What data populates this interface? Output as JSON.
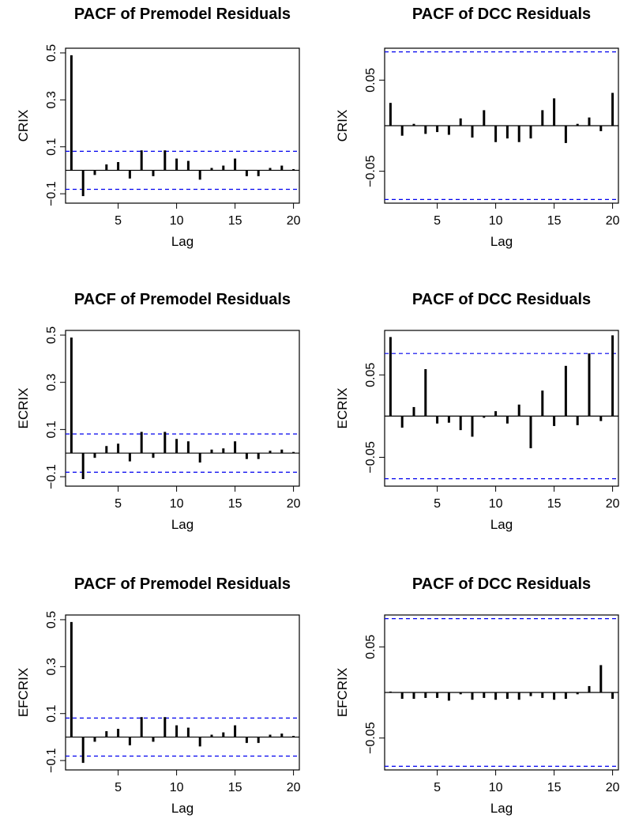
{
  "chart_data": [
    {
      "type": "bar",
      "title": "PACF of Premodel Residuals",
      "xlabel": "Lag",
      "ylabel": "CRIX",
      "x": [
        1,
        2,
        3,
        4,
        5,
        6,
        7,
        8,
        9,
        10,
        11,
        12,
        13,
        14,
        15,
        16,
        17,
        18,
        19,
        20
      ],
      "values": [
        0.49,
        -0.11,
        -0.02,
        0.025,
        0.035,
        -0.035,
        0.085,
        -0.025,
        0.085,
        0.05,
        0.04,
        -0.04,
        0.01,
        0.02,
        0.05,
        -0.025,
        -0.025,
        0.01,
        0.02,
        0.005
      ],
      "conf_bound": 0.081,
      "xlim": [
        0.5,
        20.5
      ],
      "ylim": [
        -0.14,
        0.52
      ],
      "xticks": [
        5,
        10,
        15,
        20
      ],
      "yticks": [
        -0.1,
        0.1,
        0.3,
        0.5
      ],
      "ytick_labels": [
        "−0.1",
        "0.1",
        "0.3",
        "0.5"
      ]
    },
    {
      "type": "bar",
      "title": "PACF of DCC Residuals",
      "xlabel": "Lag",
      "ylabel": "CRIX",
      "x": [
        1,
        2,
        3,
        4,
        5,
        6,
        7,
        8,
        9,
        10,
        11,
        12,
        13,
        14,
        15,
        16,
        17,
        18,
        19,
        20
      ],
      "values": [
        0.025,
        -0.011,
        0.002,
        -0.009,
        -0.007,
        -0.01,
        0.008,
        -0.013,
        0.017,
        -0.018,
        -0.014,
        -0.018,
        -0.014,
        0.017,
        0.03,
        -0.019,
        0.002,
        0.009,
        -0.006,
        0.036
      ],
      "conf_bound": 0.081,
      "xlim": [
        0.5,
        20.5
      ],
      "ylim": [
        -0.085,
        0.085
      ],
      "xticks": [
        5,
        10,
        15,
        20
      ],
      "yticks": [
        -0.05,
        0.05
      ],
      "ytick_labels": [
        "−0.05",
        "0.05"
      ]
    },
    {
      "type": "bar",
      "title": "PACF of Premodel Residuals",
      "xlabel": "Lag",
      "ylabel": "ECRIX",
      "x": [
        1,
        2,
        3,
        4,
        5,
        6,
        7,
        8,
        9,
        10,
        11,
        12,
        13,
        14,
        15,
        16,
        17,
        18,
        19,
        20
      ],
      "values": [
        0.49,
        -0.11,
        -0.02,
        0.03,
        0.04,
        -0.035,
        0.09,
        -0.02,
        0.09,
        0.06,
        0.05,
        -0.04,
        0.015,
        0.02,
        0.05,
        -0.025,
        -0.025,
        0.01,
        0.015,
        0.005
      ],
      "conf_bound": 0.081,
      "xlim": [
        0.5,
        20.5
      ],
      "ylim": [
        -0.14,
        0.52
      ],
      "xticks": [
        5,
        10,
        15,
        20
      ],
      "yticks": [
        -0.1,
        0.1,
        0.3,
        0.5
      ],
      "ytick_labels": [
        "−0.1",
        "0.1",
        "0.3",
        "0.5"
      ]
    },
    {
      "type": "bar",
      "title": "PACF of DCC Residuals",
      "xlabel": "Lag",
      "ylabel": "ECRIX",
      "x": [
        1,
        2,
        3,
        4,
        5,
        6,
        7,
        8,
        9,
        10,
        11,
        12,
        13,
        14,
        15,
        16,
        17,
        18,
        19,
        20
      ],
      "values": [
        0.096,
        -0.014,
        0.011,
        0.057,
        -0.009,
        -0.008,
        -0.017,
        -0.025,
        -0.002,
        0.006,
        -0.009,
        0.014,
        -0.039,
        0.031,
        -0.012,
        0.061,
        -0.011,
        0.076,
        -0.006,
        0.098
      ],
      "conf_bound": 0.076,
      "xlim": [
        0.5,
        20.5
      ],
      "ylim": [
        -0.085,
        0.104
      ],
      "xticks": [
        5,
        10,
        15,
        20
      ],
      "yticks": [
        -0.05,
        0.05
      ],
      "ytick_labels": [
        "−0.05",
        "0.05"
      ]
    },
    {
      "type": "bar",
      "title": "PACF of Premodel Residuals",
      "xlabel": "Lag",
      "ylabel": "EFCRIX",
      "x": [
        1,
        2,
        3,
        4,
        5,
        6,
        7,
        8,
        9,
        10,
        11,
        12,
        13,
        14,
        15,
        16,
        17,
        18,
        19,
        20
      ],
      "values": [
        0.49,
        -0.11,
        -0.02,
        0.025,
        0.035,
        -0.035,
        0.085,
        -0.02,
        0.085,
        0.05,
        0.04,
        -0.04,
        0.01,
        0.02,
        0.05,
        -0.025,
        -0.025,
        0.01,
        0.015,
        0.005
      ],
      "conf_bound": 0.081,
      "xlim": [
        0.5,
        20.5
      ],
      "ylim": [
        -0.14,
        0.52
      ],
      "xticks": [
        5,
        10,
        15,
        20
      ],
      "yticks": [
        -0.1,
        0.1,
        0.3,
        0.5
      ],
      "ytick_labels": [
        "−0.1",
        "0.1",
        "0.3",
        "0.5"
      ]
    },
    {
      "type": "bar",
      "title": "PACF of DCC Residuals",
      "xlabel": "Lag",
      "ylabel": "EFCRIX",
      "x": [
        1,
        2,
        3,
        4,
        5,
        6,
        7,
        8,
        9,
        10,
        11,
        12,
        13,
        14,
        15,
        16,
        17,
        18,
        19,
        20
      ],
      "values": [
        0.001,
        -0.007,
        -0.007,
        -0.006,
        -0.006,
        -0.009,
        -0.002,
        -0.008,
        -0.006,
        -0.008,
        -0.007,
        -0.008,
        -0.004,
        -0.006,
        -0.008,
        -0.007,
        -0.002,
        0.007,
        0.03,
        -0.007
      ],
      "conf_bound": 0.081,
      "xlim": [
        0.5,
        20.5
      ],
      "ylim": [
        -0.085,
        0.085
      ],
      "xticks": [
        5,
        10,
        15,
        20
      ],
      "yticks": [
        -0.05,
        0.05
      ],
      "ytick_labels": [
        "−0.05",
        "0.05"
      ]
    }
  ],
  "colors": {
    "bars": "#000000",
    "conf_lines": "#0000ee",
    "zero_line": "#000000",
    "frame": "#000000"
  }
}
